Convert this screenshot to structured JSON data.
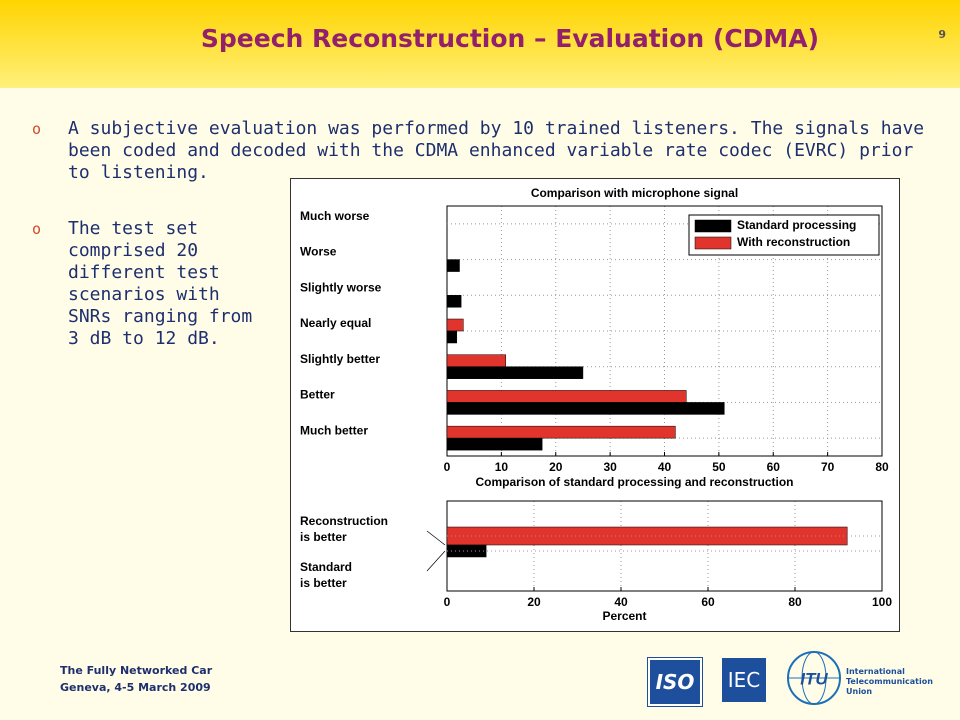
{
  "slide": {
    "title": "Speech Reconstruction – Evaluation (CDMA)",
    "page_number": "9",
    "bullets": [
      "A subjective evaluation was performed by 10 trained listeners. The signals have been coded and decoded with the CDMA enhanced variable rate codec (EVRC) prior to listening.",
      "The test set comprised 20 different test scenarios with SNRs ranging from 3 dB to 12 dB."
    ],
    "footer": [
      "The Fully Networked Car",
      "Geneva, 4-5 March 2009"
    ],
    "logos": {
      "iso": "ISO",
      "iec": "IEC",
      "itu": "ITU",
      "itu_name": [
        "International",
        "Telecommunication",
        "Union"
      ]
    }
  },
  "chart_data": [
    {
      "type": "hbar",
      "title": "Comparison with microphone signal",
      "categories": [
        "Much worse",
        "Worse",
        "Slightly worse",
        "Nearly equal",
        "Slightly better",
        "Better",
        "Much better"
      ],
      "series": [
        {
          "name": "Standard processing",
          "color": "#000000",
          "values": [
            0,
            2.3,
            2.6,
            1.8,
            25,
            51,
            17.5
          ]
        },
        {
          "name": "With reconstruction",
          "color": "#e0342c",
          "values": [
            0,
            0,
            0,
            3,
            10.8,
            44,
            42
          ]
        }
      ],
      "xlim": [
        0,
        80
      ],
      "xticks": [
        0,
        10,
        20,
        30,
        40,
        50,
        60,
        70,
        80
      ],
      "grid": true,
      "legend": "top-right"
    },
    {
      "type": "hbar-single",
      "title": "Comparison of standard processing and reconstruction",
      "categories": [
        "Reconstruction\nis better",
        "Standard\nis better"
      ],
      "values": [
        92,
        9
      ],
      "colors": [
        "#e0342c",
        "#000000"
      ],
      "xlabel": "Percent",
      "xlim": [
        0,
        100
      ],
      "xticks": [
        0,
        20,
        40,
        60,
        80,
        100
      ],
      "grid": true
    }
  ]
}
